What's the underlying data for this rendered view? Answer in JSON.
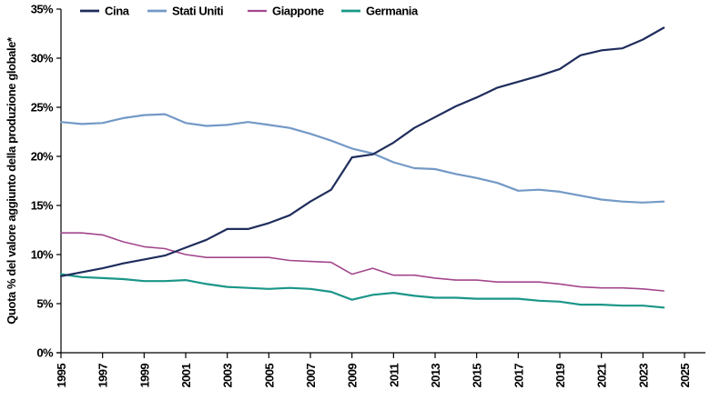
{
  "chart_data": {
    "type": "line",
    "title": "",
    "xlabel": "",
    "ylabel": "Quota % del valore aggiunto della produzione globale*",
    "xlim": [
      1995,
      2025
    ],
    "ylim": [
      0,
      35
    ],
    "x_ticks": [
      "1995",
      "1997",
      "1999",
      "2001",
      "2003",
      "2005",
      "2007",
      "2009",
      "2011",
      "2013",
      "2015",
      "2017",
      "2019",
      "2021",
      "2023",
      "2025"
    ],
    "y_ticks": [
      "0%",
      "5%",
      "10%",
      "15%",
      "20%",
      "25%",
      "30%",
      "35%"
    ],
    "grid": false,
    "legend_position": "top",
    "x": [
      1995,
      1996,
      1997,
      1998,
      1999,
      2000,
      2001,
      2002,
      2003,
      2004,
      2005,
      2006,
      2007,
      2008,
      2009,
      2010,
      2011,
      2012,
      2013,
      2014,
      2015,
      2016,
      2017,
      2018,
      2019,
      2020,
      2021,
      2022,
      2023,
      2024
    ],
    "series": [
      {
        "name": "Cina",
        "color": "#1f2d5c",
        "width": 2.2,
        "values": [
          7.8,
          8.2,
          8.6,
          9.1,
          9.5,
          9.9,
          10.7,
          11.5,
          12.6,
          12.6,
          13.2,
          14.0,
          15.4,
          16.6,
          19.9,
          20.2,
          21.4,
          22.9,
          24.0,
          25.1,
          26.0,
          27.0,
          27.6,
          28.2,
          28.9,
          30.3,
          30.8,
          31.0,
          31.9,
          33.1
        ]
      },
      {
        "name": "Stati Uniti",
        "color": "#7399c6",
        "width": 2.2,
        "values": [
          23.5,
          23.3,
          23.4,
          23.9,
          24.2,
          24.3,
          23.4,
          23.1,
          23.2,
          23.5,
          23.2,
          22.9,
          22.3,
          21.6,
          20.8,
          20.3,
          19.4,
          18.8,
          18.7,
          18.2,
          17.8,
          17.3,
          16.5,
          16.6,
          16.4,
          16.0,
          15.6,
          15.4,
          15.3,
          15.4
        ]
      },
      {
        "name": "Giappone",
        "color": "#a3468c",
        "width": 1.6,
        "values": [
          12.2,
          12.2,
          12.0,
          11.3,
          10.8,
          10.6,
          10.0,
          9.7,
          9.7,
          9.7,
          9.7,
          9.4,
          9.3,
          9.2,
          8.0,
          8.6,
          7.9,
          7.9,
          7.6,
          7.4,
          7.4,
          7.2,
          7.2,
          7.2,
          7.0,
          6.7,
          6.6,
          6.6,
          6.5,
          6.3
        ]
      },
      {
        "name": "Germania",
        "color": "#1a9688",
        "width": 2.2,
        "values": [
          8.0,
          7.7,
          7.6,
          7.5,
          7.3,
          7.3,
          7.4,
          7.0,
          6.7,
          6.6,
          6.5,
          6.6,
          6.5,
          6.2,
          5.4,
          5.9,
          6.1,
          5.8,
          5.6,
          5.6,
          5.5,
          5.5,
          5.5,
          5.3,
          5.2,
          4.9,
          4.9,
          4.8,
          4.8,
          4.6
        ]
      }
    ]
  }
}
